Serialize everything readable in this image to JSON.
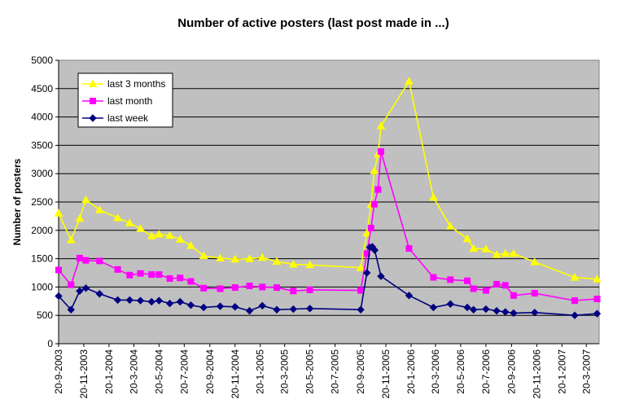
{
  "chart_data": {
    "type": "line",
    "title": "Number of active posters (last post made in ...)",
    "ylabel": "Number of posters",
    "xlabel": "",
    "ylim": [
      0,
      5000
    ],
    "yticks": [
      0,
      500,
      1000,
      1500,
      2000,
      2500,
      3000,
      3500,
      4000,
      4500,
      5000
    ],
    "x_start": "20-9-2003",
    "x_end": "20-4-2007",
    "x_tick_labels": [
      "20-9-2003",
      "20-11-2003",
      "20-1-2004",
      "20-3-2004",
      "20-5-2004",
      "20-7-2004",
      "20-9-2004",
      "20-11-2004",
      "20-1-2005",
      "20-3-2005",
      "20-5-2005",
      "20-7-2005",
      "20-9-2005",
      "20-11-2005",
      "20-1-2006",
      "20-3-2006",
      "20-5-2006",
      "20-7-2006",
      "20-9-2006",
      "20-11-2006",
      "20-1-2007",
      "20-3-2007"
    ],
    "grid": true,
    "legend_position": "top-left",
    "plot_background": "#c0c0c0",
    "series": [
      {
        "name": "last 3 months",
        "color": "#ffff00",
        "marker": "triangle",
        "points": [
          [
            "2003-09-20",
            2300
          ],
          [
            "2003-10-20",
            1830
          ],
          [
            "2003-11-10",
            2210
          ],
          [
            "2003-11-25",
            2540
          ],
          [
            "2003-12-28",
            2360
          ],
          [
            "2004-02-10",
            2220
          ],
          [
            "2004-03-10",
            2130
          ],
          [
            "2004-04-05",
            2030
          ],
          [
            "2004-05-02",
            1900
          ],
          [
            "2004-05-20",
            1930
          ],
          [
            "2004-06-15",
            1910
          ],
          [
            "2004-07-10",
            1840
          ],
          [
            "2004-08-05",
            1730
          ],
          [
            "2004-09-05",
            1550
          ],
          [
            "2004-10-15",
            1510
          ],
          [
            "2004-11-20",
            1490
          ],
          [
            "2004-12-25",
            1500
          ],
          [
            "2005-01-25",
            1520
          ],
          [
            "2005-03-01",
            1450
          ],
          [
            "2005-04-10",
            1400
          ],
          [
            "2005-05-20",
            1390
          ],
          [
            "2005-09-20",
            1340
          ],
          [
            "2005-10-05",
            1950
          ],
          [
            "2005-10-15",
            2450
          ],
          [
            "2005-10-23",
            3050
          ],
          [
            "2005-11-01",
            3340
          ],
          [
            "2005-11-08",
            3840
          ],
          [
            "2006-01-15",
            4630
          ],
          [
            "2006-03-15",
            2580
          ],
          [
            "2006-04-25",
            2070
          ],
          [
            "2006-06-05",
            1850
          ],
          [
            "2006-06-20",
            1680
          ],
          [
            "2006-07-20",
            1670
          ],
          [
            "2006-08-15",
            1570
          ],
          [
            "2006-09-05",
            1590
          ],
          [
            "2006-09-25",
            1590
          ],
          [
            "2006-11-15",
            1440
          ],
          [
            "2007-02-20",
            1170
          ],
          [
            "2007-04-15",
            1140
          ]
        ]
      },
      {
        "name": "last month",
        "color": "#ff00ff",
        "marker": "square",
        "points": [
          [
            "2003-09-20",
            1300
          ],
          [
            "2003-10-20",
            1040
          ],
          [
            "2003-11-10",
            1510
          ],
          [
            "2003-11-25",
            1470
          ],
          [
            "2003-12-28",
            1460
          ],
          [
            "2004-02-10",
            1310
          ],
          [
            "2004-03-10",
            1210
          ],
          [
            "2004-04-05",
            1240
          ],
          [
            "2004-05-02",
            1220
          ],
          [
            "2004-05-20",
            1220
          ],
          [
            "2004-06-15",
            1150
          ],
          [
            "2004-07-10",
            1160
          ],
          [
            "2004-08-05",
            1100
          ],
          [
            "2004-09-05",
            980
          ],
          [
            "2004-10-15",
            970
          ],
          [
            "2004-11-20",
            990
          ],
          [
            "2004-12-25",
            1020
          ],
          [
            "2005-01-25",
            1000
          ],
          [
            "2005-03-01",
            990
          ],
          [
            "2005-04-10",
            930
          ],
          [
            "2005-05-20",
            950
          ],
          [
            "2005-09-20",
            940
          ],
          [
            "2005-10-05",
            1590
          ],
          [
            "2005-10-15",
            2040
          ],
          [
            "2005-10-23",
            2460
          ],
          [
            "2005-11-01",
            2720
          ],
          [
            "2005-11-08",
            3390
          ],
          [
            "2006-01-15",
            1680
          ],
          [
            "2006-03-15",
            1170
          ],
          [
            "2006-04-25",
            1130
          ],
          [
            "2006-06-05",
            1110
          ],
          [
            "2006-06-20",
            970
          ],
          [
            "2006-07-20",
            940
          ],
          [
            "2006-08-15",
            1050
          ],
          [
            "2006-09-05",
            1030
          ],
          [
            "2006-09-25",
            850
          ],
          [
            "2006-11-15",
            890
          ],
          [
            "2007-02-20",
            760
          ],
          [
            "2007-04-15",
            790
          ]
        ]
      },
      {
        "name": "last week",
        "color": "#000080",
        "marker": "diamond",
        "points": [
          [
            "2003-09-20",
            840
          ],
          [
            "2003-10-20",
            600
          ],
          [
            "2003-11-10",
            930
          ],
          [
            "2003-11-25",
            980
          ],
          [
            "2003-12-28",
            880
          ],
          [
            "2004-02-10",
            770
          ],
          [
            "2004-03-10",
            770
          ],
          [
            "2004-04-05",
            760
          ],
          [
            "2004-05-02",
            740
          ],
          [
            "2004-05-20",
            760
          ],
          [
            "2004-06-15",
            710
          ],
          [
            "2004-07-10",
            740
          ],
          [
            "2004-08-05",
            680
          ],
          [
            "2004-09-05",
            640
          ],
          [
            "2004-10-15",
            660
          ],
          [
            "2004-11-20",
            650
          ],
          [
            "2004-12-25",
            580
          ],
          [
            "2005-01-25",
            670
          ],
          [
            "2005-03-01",
            600
          ],
          [
            "2005-04-10",
            610
          ],
          [
            "2005-05-20",
            620
          ],
          [
            "2005-09-20",
            600
          ],
          [
            "2005-10-05",
            1250
          ],
          [
            "2005-10-12",
            1700
          ],
          [
            "2005-10-18",
            1710
          ],
          [
            "2005-10-24",
            1650
          ],
          [
            "2005-11-08",
            1190
          ],
          [
            "2006-01-15",
            850
          ],
          [
            "2006-03-15",
            640
          ],
          [
            "2006-04-25",
            700
          ],
          [
            "2006-06-05",
            640
          ],
          [
            "2006-06-20",
            600
          ],
          [
            "2006-07-20",
            610
          ],
          [
            "2006-08-15",
            580
          ],
          [
            "2006-09-05",
            560
          ],
          [
            "2006-09-25",
            540
          ],
          [
            "2006-11-15",
            550
          ],
          [
            "2007-02-20",
            500
          ],
          [
            "2007-04-15",
            530
          ]
        ]
      }
    ]
  }
}
